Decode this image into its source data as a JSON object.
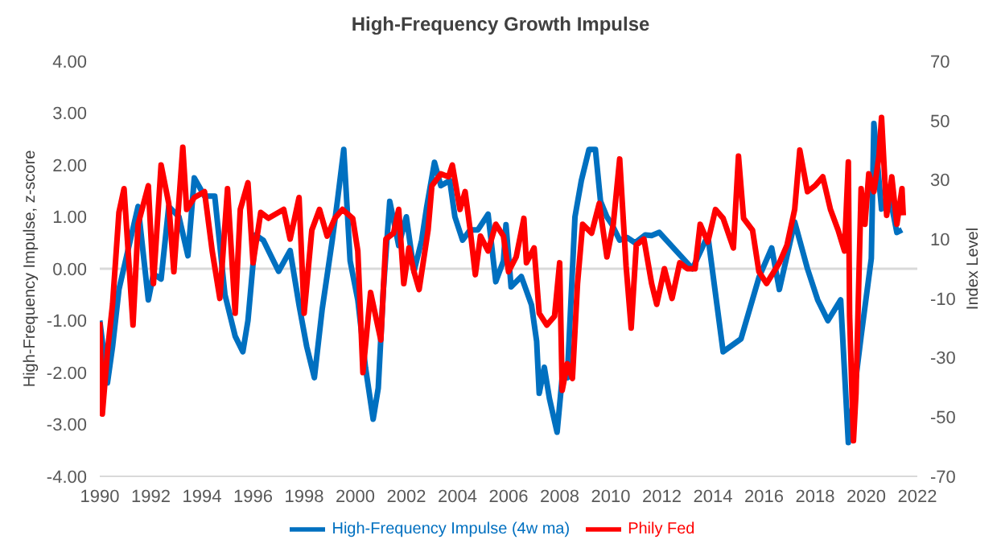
{
  "chart_data": {
    "type": "line",
    "title": "High-Frequency Growth Impulse",
    "ylabel": "High-Frequency Impulse, z-score",
    "y2label": "Index Level",
    "xlim": [
      1990,
      2022
    ],
    "xticks": [
      1990,
      1992,
      1994,
      1996,
      1998,
      2000,
      2002,
      2004,
      2006,
      2008,
      2010,
      2012,
      2014,
      2016,
      2018,
      2020,
      2022
    ],
    "ylim": [
      -4,
      4
    ],
    "yticks": [
      {
        "value": -4,
        "label": "-4.00"
      },
      {
        "value": -3,
        "label": "-3.00"
      },
      {
        "value": -2,
        "label": "-2.00"
      },
      {
        "value": -1,
        "label": "-1.00"
      },
      {
        "value": 0,
        "label": "0.00"
      },
      {
        "value": 1,
        "label": "1.00"
      },
      {
        "value": 2,
        "label": "2.00"
      },
      {
        "value": 3,
        "label": "3.00"
      },
      {
        "value": 4,
        "label": "4.00"
      }
    ],
    "y2lim": [
      -70,
      70
    ],
    "y2ticks": [
      -70,
      -50,
      -30,
      -10,
      10,
      30,
      50,
      70
    ],
    "ref_lines": [
      {
        "axis": "y",
        "value": 0,
        "color": "#d9d9d9"
      }
    ],
    "grid": false,
    "legend": "bottom",
    "marker": "none",
    "line_style": "solid",
    "series": [
      {
        "name": "High-Frequency Impulse (4w ma)",
        "color": "#0070c0",
        "x": [
          1990,
          1990.3,
          1990.5,
          1990.75,
          1991.1,
          1991.5,
          1991.9,
          1992.1,
          1992.4,
          1992.7,
          1993.1,
          1993.45,
          1993.7,
          1994.1,
          1994.5,
          1994.9,
          1995.1,
          1995.3,
          1995.6,
          1995.8,
          1996.1,
          1996.4,
          1997.0,
          1997.45,
          1997.8,
          1998.1,
          1998.4,
          1998.7,
          1999.1,
          1999.3,
          1999.55,
          1999.8,
          2000.1,
          2000.4,
          2000.7,
          2000.9,
          2001.1,
          2001.35,
          2001.7,
          2002.0,
          2002.3,
          2002.6,
          2002.8,
          2003.1,
          2003.35,
          2003.7,
          2003.9,
          2004.2,
          2004.5,
          2004.8,
          2005.2,
          2005.5,
          2005.8,
          2005.9,
          2006.1,
          2006.5,
          2006.9,
          2007.1,
          2007.2,
          2007.4,
          2007.6,
          2007.9,
          2008.1,
          2008.3,
          2008.6,
          2008.85,
          2009.15,
          2009.4,
          2009.6,
          2009.85,
          2010.05,
          2010.35,
          2010.65,
          2010.95,
          2011.35,
          2011.6,
          2011.9,
          2013.2,
          2013.8,
          2014.4,
          2015.1,
          2015.8,
          2016.3,
          2016.6,
          2017.2,
          2017.7,
          2018.1,
          2018.5,
          2019.0,
          2019.3,
          2019.6,
          2019.8,
          2020.2,
          2020.3,
          2020.6,
          2020.9,
          2021.2,
          2021.4
        ],
        "values": [
          -1.0,
          -2.2,
          -1.5,
          -0.4,
          0.35,
          1.2,
          -0.6,
          -0.1,
          -0.2,
          1.2,
          1.0,
          0.25,
          1.75,
          1.4,
          1.4,
          -0.5,
          -0.9,
          -1.3,
          -1.6,
          -1.0,
          0.65,
          0.55,
          -0.05,
          0.35,
          -0.7,
          -1.5,
          -2.1,
          -0.8,
          0.55,
          1.3,
          2.3,
          0.15,
          -0.6,
          -1.9,
          -2.9,
          -2.3,
          -0.4,
          1.3,
          0.45,
          1.0,
          -0.05,
          0.55,
          1.2,
          2.05,
          1.6,
          1.7,
          1.0,
          0.55,
          0.75,
          0.75,
          1.05,
          -0.25,
          0.15,
          0.85,
          -0.35,
          -0.15,
          -0.7,
          -1.4,
          -2.4,
          -1.9,
          -2.5,
          -3.15,
          -2.1,
          -2.1,
          1.0,
          1.7,
          2.3,
          2.3,
          1.3,
          1.0,
          0.85,
          0.55,
          0.6,
          0.5,
          0.65,
          0.64,
          0.7,
          0,
          0.64,
          -1.6,
          -1.35,
          -0.17,
          0.4,
          -0.4,
          0.9,
          0,
          -0.6,
          -1.0,
          -0.6,
          -3.35,
          -2.1,
          -1.3,
          0.2,
          2.8,
          1.15,
          1.45,
          0.7,
          0.75
        ]
      },
      {
        "name": "Phily Fed",
        "color": "#ff0000",
        "axis": "y2",
        "x": [
          1990,
          1990.1,
          1990.3,
          1990.5,
          1990.75,
          1990.95,
          1991.3,
          1991.5,
          1991.9,
          1992.1,
          1992.4,
          1992.7,
          1992.9,
          1993.25,
          1993.4,
          1993.7,
          1994.1,
          1994.4,
          1994.7,
          1995.0,
          1995.3,
          1995.5,
          1995.8,
          1996.0,
          1996.3,
          1996.6,
          1997.2,
          1997.45,
          1997.8,
          1998.0,
          1998.3,
          1998.6,
          1998.9,
          1999.2,
          1999.5,
          1999.9,
          2000.1,
          2000.3,
          2000.6,
          2001.0,
          2001.2,
          2001.5,
          2001.7,
          2001.9,
          2002.1,
          2002.3,
          2002.5,
          2002.85,
          2003.0,
          2003.35,
          2003.65,
          2003.8,
          2004.1,
          2004.3,
          2004.5,
          2004.7,
          2004.9,
          2005.2,
          2005.5,
          2005.8,
          2006.0,
          2006.3,
          2006.6,
          2006.7,
          2007.0,
          2007.2,
          2007.5,
          2007.8,
          2008.0,
          2008.1,
          2008.3,
          2008.5,
          2008.7,
          2008.9,
          2009.25,
          2009.55,
          2009.85,
          2010.1,
          2010.35,
          2010.6,
          2010.8,
          2011.0,
          2011.3,
          2011.6,
          2011.8,
          2012.1,
          2012.4,
          2012.7,
          2013.0,
          2013.3,
          2013.5,
          2013.8,
          2014.1,
          2014.4,
          2014.8,
          2015.0,
          2015.2,
          2015.55,
          2015.8,
          2016.1,
          2016.6,
          2016.9,
          2017.2,
          2017.4,
          2017.7,
          2018.0,
          2018.3,
          2018.6,
          2018.9,
          2019.15,
          2019.3,
          2019.35,
          2019.5,
          2019.6,
          2019.8,
          2019.95,
          2020.1,
          2020.3,
          2020.5,
          2020.6,
          2020.8,
          2021.0,
          2021.2,
          2021.4,
          2021.45
        ],
        "values": [
          -18,
          -49,
          -28,
          -12,
          19,
          27,
          -19,
          15,
          28,
          -5,
          35,
          22,
          -1,
          41,
          20,
          24,
          26,
          6,
          -10,
          27,
          -15,
          20,
          29,
          2,
          19,
          17,
          20,
          10,
          24,
          -15,
          13,
          20,
          11,
          17,
          20,
          17,
          6,
          -35,
          -8,
          -24,
          10,
          12,
          20,
          -5,
          7,
          -1,
          -7,
          13,
          28,
          32,
          31,
          35,
          20,
          26,
          13,
          -2,
          11,
          6,
          15,
          11,
          -1,
          4,
          17,
          2,
          7,
          -15,
          -19,
          -16,
          2,
          -41,
          -32,
          -37,
          -5,
          15,
          12,
          22,
          4,
          15,
          37,
          1,
          -20,
          8,
          10,
          -5,
          -12,
          0,
          -10,
          2,
          0,
          0,
          15,
          9,
          20,
          17,
          7,
          38,
          17,
          13,
          -1,
          -5,
          2,
          8,
          20,
          40,
          26,
          28,
          31,
          20,
          13,
          6,
          36,
          -16,
          -58,
          -42,
          27,
          15,
          32,
          26,
          38,
          51,
          18,
          31,
          15,
          27,
          18
        ]
      }
    ]
  }
}
